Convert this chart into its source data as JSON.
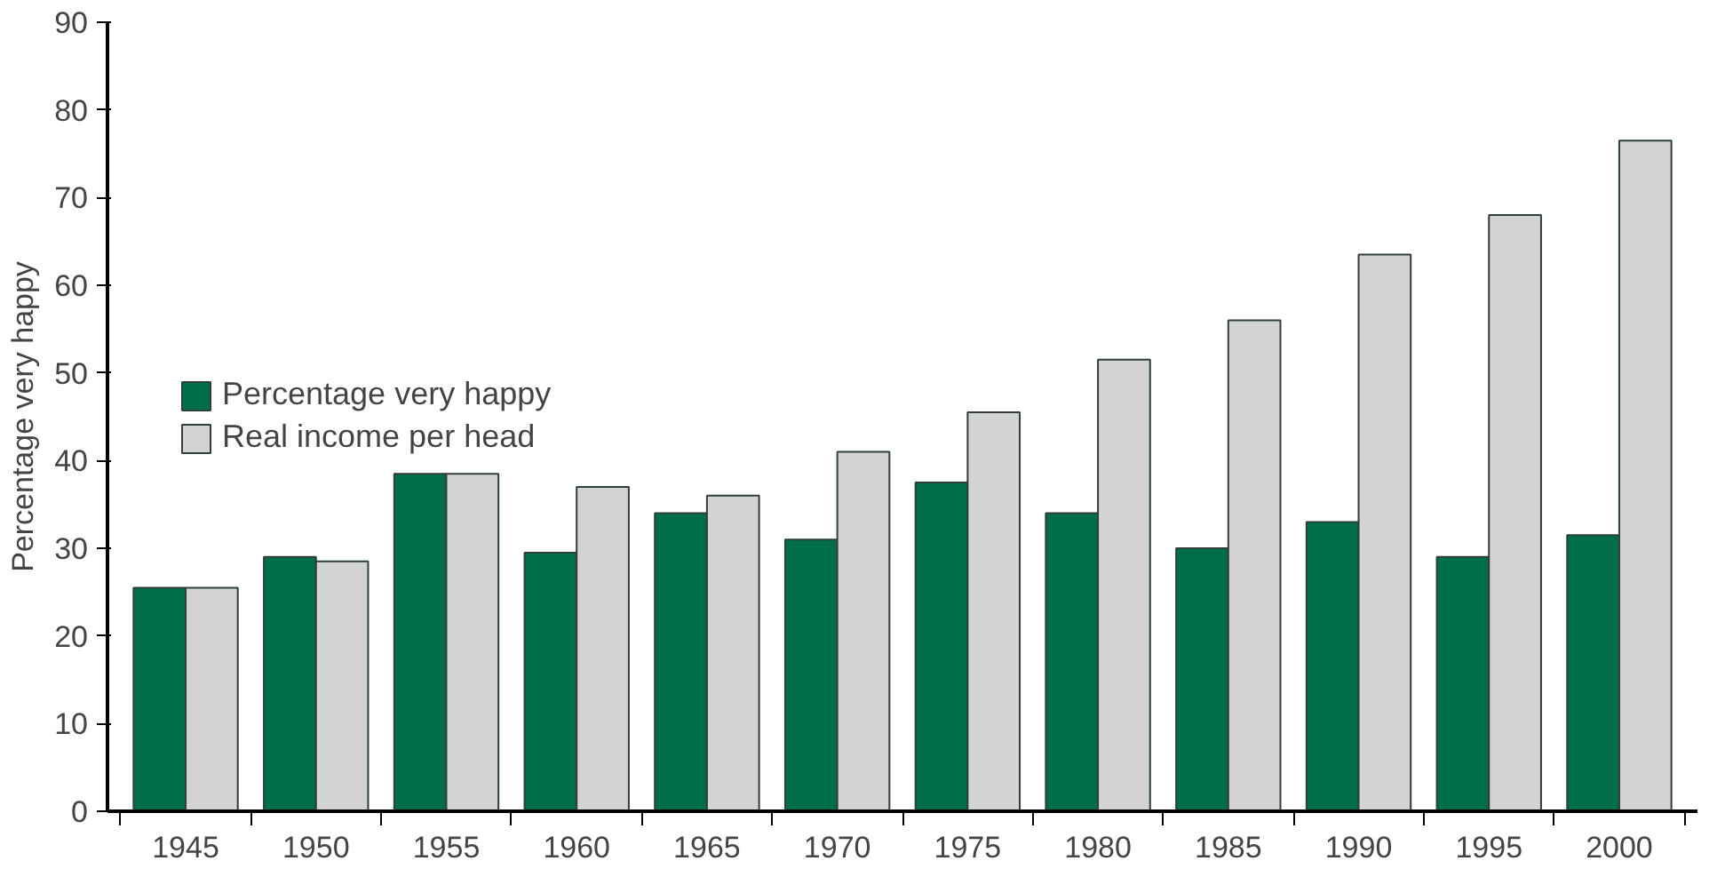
{
  "chart_data": {
    "type": "bar",
    "ylabel": "Percentage very happy",
    "categories": [
      "1945",
      "1950",
      "1955",
      "1960",
      "1965",
      "1970",
      "1975",
      "1980",
      "1985",
      "1990",
      "1995",
      "2000"
    ],
    "series": [
      {
        "name": "Percentage very happy",
        "color": "#006e46",
        "values": [
          25.5,
          29,
          38.5,
          29.5,
          34,
          31,
          37.5,
          34,
          30,
          33,
          29,
          31.5
        ]
      },
      {
        "name": "Real income per head",
        "color": "#d3d3d3",
        "values": [
          25.5,
          28.5,
          38.5,
          37,
          36,
          41,
          45.5,
          51.5,
          56,
          63.5,
          68,
          76.5
        ]
      }
    ],
    "ylim": [
      0,
      90
    ],
    "yticks": [
      0,
      10,
      20,
      30,
      40,
      50,
      60,
      70,
      80,
      90
    ],
    "grid": false,
    "legend": "left"
  }
}
